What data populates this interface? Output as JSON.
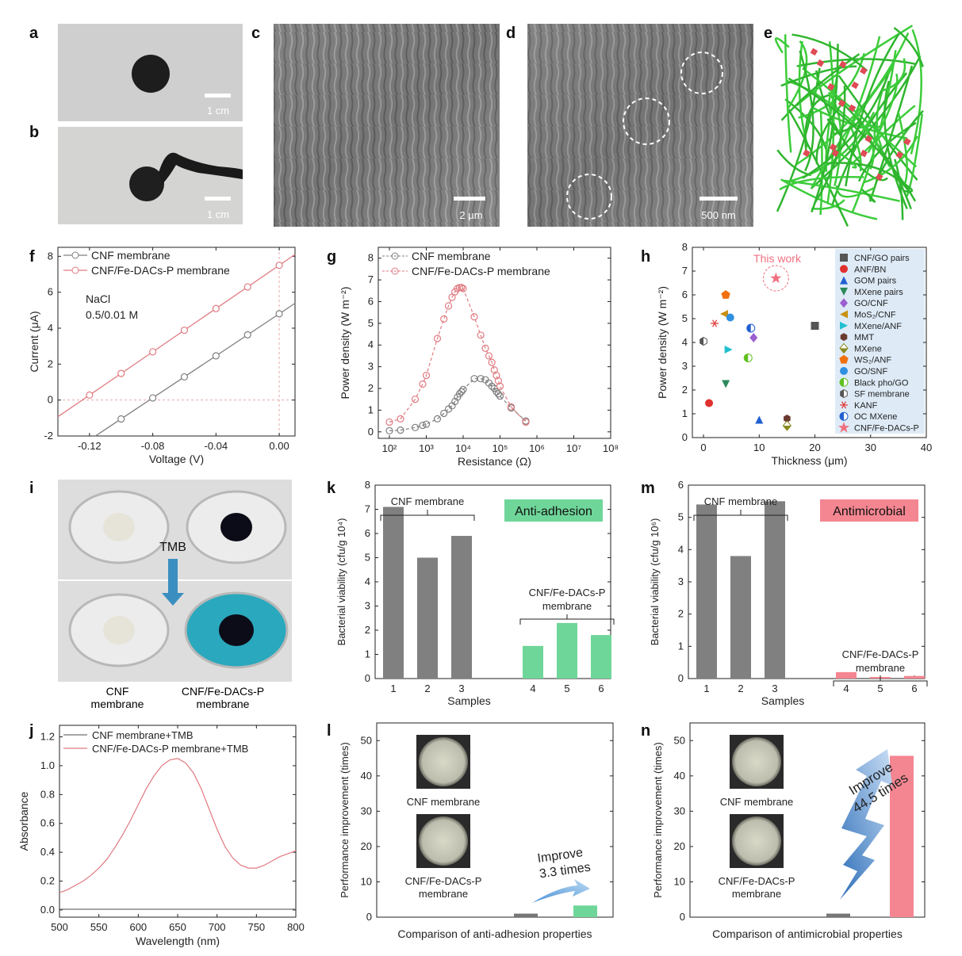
{
  "panel_letters": [
    "a",
    "b",
    "c",
    "d",
    "e",
    "f",
    "g",
    "h",
    "i",
    "k",
    "m",
    "j",
    "l",
    "n"
  ],
  "photo_a": {
    "scale": "1 cm"
  },
  "photo_b": {
    "scale": "1 cm"
  },
  "sem_c": {
    "scale": "2 µm"
  },
  "sem_d": {
    "scale": "500 nm"
  },
  "photo_i": {
    "reagent": "TMB",
    "label_left_1": "CNF",
    "label_left_2": "membrane",
    "label_right_1": "CNF/Fe-DACs-P",
    "label_right_2": "membrane",
    "colors": {
      "tmb_blue": "#2aa8bd",
      "arrow": "#3a8fc0"
    }
  },
  "colors": {
    "cnf": "#7f7f7f",
    "fe": "#e07a80",
    "green": "#6fd699",
    "pink": "#f48691",
    "bar_gray": "#808080",
    "legend_bg": "#deebf7"
  },
  "chart_data": [
    {
      "id": "f",
      "type": "line",
      "xlabel": "Voltage (V)",
      "ylabel": "Current (μA)",
      "xlim": [
        -0.14,
        0.01
      ],
      "ylim": [
        -2,
        8.5
      ],
      "xticks": [
        -0.12,
        -0.08,
        -0.04,
        0.0
      ],
      "xtick_labels": [
        "-0.12",
        "-0.08",
        "-0.04",
        "0.00"
      ],
      "yticks": [
        -2,
        0,
        2,
        4,
        6,
        8
      ],
      "ytick_labels": [
        "-2",
        "0",
        "2",
        "4",
        "6",
        "8"
      ],
      "annotation": [
        "NaCl",
        "0.5/0.01 M"
      ],
      "series": [
        {
          "name": "CNF membrane",
          "slope": 58.5,
          "intercept": 4.8,
          "points_x": [
            -0.1,
            -0.08,
            -0.06,
            -0.04,
            -0.02,
            0.0
          ]
        },
        {
          "name": "CNF/Fe-DACs-P membrane",
          "slope": 60.2,
          "intercept": 7.5,
          "points_x": [
            -0.12,
            -0.1,
            -0.08,
            -0.06,
            -0.04,
            -0.02,
            0.0
          ]
        }
      ]
    },
    {
      "id": "g",
      "type": "line",
      "xlabel": "Resistance (Ω)",
      "ylabel": "Power density (W m⁻²)",
      "xlog": true,
      "xlim": [
        50,
        100000000.0
      ],
      "ylim": [
        -0.3,
        8.5
      ],
      "xticks": [
        100,
        1000,
        10000,
        100000,
        1000000,
        10000000,
        100000000
      ],
      "xtick_labels": [
        "10²",
        "10³",
        "10⁴",
        "10⁵",
        "10⁶",
        "10⁷",
        "10⁸"
      ],
      "yticks": [
        0,
        1,
        2,
        3,
        4,
        5,
        6,
        7,
        8
      ],
      "ytick_labels": [
        "0",
        "1",
        "2",
        "3",
        "4",
        "5",
        "6",
        "7",
        "8"
      ],
      "series": [
        {
          "name": "CNF membrane",
          "x": [
            100,
            200,
            500,
            800,
            1000,
            2000,
            3000,
            4000,
            5000,
            6000,
            7000,
            8000,
            9000,
            10000,
            20000,
            30000,
            40000,
            50000,
            60000,
            70000,
            80000,
            90000,
            100000,
            200000,
            500000
          ],
          "y": [
            0.05,
            0.08,
            0.2,
            0.3,
            0.35,
            0.6,
            0.85,
            1.05,
            1.2,
            1.4,
            1.6,
            1.75,
            1.85,
            1.95,
            2.45,
            2.45,
            2.4,
            2.25,
            2.1,
            2.0,
            1.85,
            1.75,
            1.65,
            1.1,
            0.5
          ]
        },
        {
          "name": "CNF/Fe-DACs-P membrane",
          "x": [
            100,
            200,
            500,
            800,
            1000,
            2000,
            3000,
            4000,
            5000,
            6000,
            7000,
            8000,
            9000,
            10000,
            20000,
            30000,
            40000,
            50000,
            60000,
            70000,
            80000,
            90000,
            100000,
            200000,
            500000
          ],
          "y": [
            0.45,
            0.6,
            1.5,
            2.2,
            2.6,
            4.3,
            5.2,
            5.8,
            6.2,
            6.45,
            6.6,
            6.65,
            6.65,
            6.6,
            5.3,
            4.45,
            3.85,
            3.5,
            3.2,
            2.85,
            2.6,
            2.35,
            2.1,
            1.15,
            0.45
          ]
        }
      ]
    },
    {
      "id": "h",
      "type": "scatter",
      "xlabel": "Thickness (μm)",
      "ylabel": "Power density (W m⁻²)",
      "xlim": [
        -2,
        40
      ],
      "ylim": [
        0,
        8
      ],
      "xticks": [
        0,
        10,
        20,
        30,
        40
      ],
      "xtick_labels": [
        "0",
        "10",
        "20",
        "30",
        "40"
      ],
      "yticks": [
        0,
        1,
        2,
        3,
        4,
        5,
        6,
        7,
        8
      ],
      "ytick_labels": [
        "0",
        "1",
        "2",
        "3",
        "4",
        "5",
        "6",
        "7",
        "8"
      ],
      "annotation": "This work",
      "points": [
        {
          "name": "CNF/GO pairs",
          "x": 20,
          "y": 4.7,
          "color": "#555555",
          "marker": "square"
        },
        {
          "name": "ANF/BN",
          "x": 1,
          "y": 1.45,
          "color": "#e03030",
          "marker": "circle"
        },
        {
          "name": "GOM pairs",
          "x": 10,
          "y": 0.75,
          "color": "#2060d0",
          "marker": "triangle-up"
        },
        {
          "name": "MXene pairs",
          "x": 4,
          "y": 2.25,
          "color": "#2a8a5a",
          "marker": "triangle-down"
        },
        {
          "name": "GO/CNF",
          "x": 9,
          "y": 4.2,
          "color": "#9b5fd0",
          "marker": "diamond"
        },
        {
          "name": "MoS₂/CNF",
          "x": 3.7,
          "y": 5.2,
          "color": "#c89010",
          "marker": "triangle-left"
        },
        {
          "name": "MXene/ANF",
          "x": 4.5,
          "y": 3.7,
          "color": "#20c0d0",
          "marker": "triangle-right"
        },
        {
          "name": "MMT",
          "x": 15,
          "y": 0.8,
          "color": "#6a3a30",
          "marker": "hexagon"
        },
        {
          "name": "MXene",
          "x": 15,
          "y": 0.5,
          "color": "#8a8a20",
          "marker": "diamond-half"
        },
        {
          "name": "WS₂/ANF",
          "x": 4,
          "y": 6.0,
          "color": "#f07010",
          "marker": "pentagon"
        },
        {
          "name": "GO/SNF",
          "x": 4.8,
          "y": 5.05,
          "color": "#3090e0",
          "marker": "circle"
        },
        {
          "name": "Black pho/GO",
          "x": 8,
          "y": 3.35,
          "color": "#60c020",
          "marker": "circle-half"
        },
        {
          "name": "SF membrane",
          "x": 0,
          "y": 4.05,
          "color": "#555555",
          "marker": "hexagon-half"
        },
        {
          "name": "KANF",
          "x": 2,
          "y": 4.8,
          "color": "#e04040",
          "marker": "star6"
        },
        {
          "name": "OC MXene",
          "x": 8.5,
          "y": 4.6,
          "color": "#2060d0",
          "marker": "circle-half"
        },
        {
          "name": "CNF/Fe-DACs-P",
          "x": 13,
          "y": 6.7,
          "color": "#f07080",
          "marker": "star"
        }
      ]
    },
    {
      "id": "k",
      "type": "bar",
      "xlabel": "Samples",
      "ylabel": "Bacterial viability (cfu/g 10⁴)",
      "ylim": [
        0,
        8
      ],
      "yticks": [
        0,
        1,
        2,
        3,
        4,
        5,
        6,
        7,
        8
      ],
      "ytick_labels": [
        "0",
        "1",
        "2",
        "3",
        "4",
        "5",
        "6",
        "7",
        "8"
      ],
      "categories": [
        "1",
        "2",
        "3",
        "4",
        "5",
        "6"
      ],
      "values": [
        7.1,
        5.0,
        5.9,
        1.35,
        2.3,
        1.8
      ],
      "group_label_1": "CNF membrane",
      "group_label_2a": "CNF/Fe-DACs-P",
      "group_label_2b": "membrane",
      "tag": "Anti-adhesion"
    },
    {
      "id": "m",
      "type": "bar",
      "xlabel": "Samples",
      "ylabel": "Bacterial viability (cfu/g 10⁶)",
      "ylim": [
        0,
        6
      ],
      "yticks": [
        0,
        1,
        2,
        3,
        4,
        5,
        6
      ],
      "ytick_labels": [
        "0",
        "1",
        "2",
        "3",
        "4",
        "5",
        "6"
      ],
      "categories": [
        "1",
        "2",
        "3",
        "4",
        "5",
        "6"
      ],
      "values": [
        5.4,
        3.8,
        5.5,
        0.2,
        0.05,
        0.08
      ],
      "group_label_1": "CNF membrane",
      "group_label_2a": "CNF/Fe-DACs-P",
      "group_label_2b": "membrane",
      "tag": "Antimicrobial"
    },
    {
      "id": "j",
      "type": "line",
      "xlabel": "Wavelength (nm)",
      "ylabel": "Absorbance",
      "xlim": [
        500,
        800
      ],
      "ylim": [
        -0.05,
        1.28
      ],
      "xticks": [
        500,
        550,
        600,
        650,
        700,
        750,
        800
      ],
      "xtick_labels": [
        "500",
        "550",
        "600",
        "650",
        "700",
        "750",
        "800"
      ],
      "yticks": [
        0,
        0.2,
        0.4,
        0.6,
        0.8,
        1.0,
        1.2
      ],
      "ytick_labels": [
        "0.0",
        "0.2",
        "0.4",
        "0.6",
        "0.8",
        "1.0",
        "1.2"
      ],
      "series": [
        {
          "name": "CNF membrane+TMB",
          "x": [
            500,
            550,
            600,
            650,
            700,
            750,
            800
          ],
          "y": [
            0.005,
            0.005,
            0.005,
            0.005,
            0.005,
            0.005,
            0.005
          ]
        },
        {
          "name": "CNF/Fe-DACs-P membrane+TMB",
          "x": [
            500,
            510,
            520,
            530,
            540,
            550,
            560,
            570,
            580,
            590,
            600,
            610,
            620,
            630,
            640,
            650,
            660,
            670,
            680,
            690,
            700,
            710,
            720,
            730,
            740,
            750,
            760,
            770,
            780,
            790,
            800
          ],
          "y": [
            0.12,
            0.14,
            0.17,
            0.2,
            0.24,
            0.29,
            0.35,
            0.43,
            0.52,
            0.62,
            0.73,
            0.84,
            0.93,
            1.0,
            1.04,
            1.05,
            1.02,
            0.95,
            0.84,
            0.7,
            0.56,
            0.44,
            0.36,
            0.31,
            0.29,
            0.29,
            0.31,
            0.34,
            0.37,
            0.39,
            0.41
          ]
        }
      ]
    },
    {
      "id": "l",
      "type": "bar",
      "xlabel": "Comparison of anti-adhesion properties",
      "ylabel": "Performance improvement (times)",
      "ylim": [
        0,
        55
      ],
      "yticks": [
        0,
        10,
        20,
        30,
        40,
        50
      ],
      "ytick_labels": [
        "0",
        "10",
        "20",
        "30",
        "40",
        "50"
      ],
      "categories": [
        "CNF membrane",
        "CNF/Fe-DACs-P membrane"
      ],
      "values": [
        1,
        3.3
      ],
      "plate_label_1": "CNF membrane",
      "plate_label_2a": "CNF/Fe-DACs-P",
      "plate_label_2b": "membrane",
      "improve_1": "Improve",
      "improve_2": "3.3 times"
    },
    {
      "id": "n",
      "type": "bar",
      "xlabel": "Comparison of antimicrobial properties",
      "ylabel": "Performance improvement (times)",
      "ylim": [
        0,
        55
      ],
      "yticks": [
        0,
        10,
        20,
        30,
        40,
        50
      ],
      "ytick_labels": [
        "0",
        "10",
        "20",
        "30",
        "40",
        "50"
      ],
      "categories": [
        "CNF membrane",
        "CNF/Fe-DACs-P membrane"
      ],
      "values": [
        1,
        45.7
      ],
      "plate_label_1": "CNF membrane",
      "plate_label_2a": "CNF/Fe-DACs-P",
      "plate_label_2b": "membrane",
      "improve_1": "Improve",
      "improve_2": "44.5 times"
    }
  ]
}
